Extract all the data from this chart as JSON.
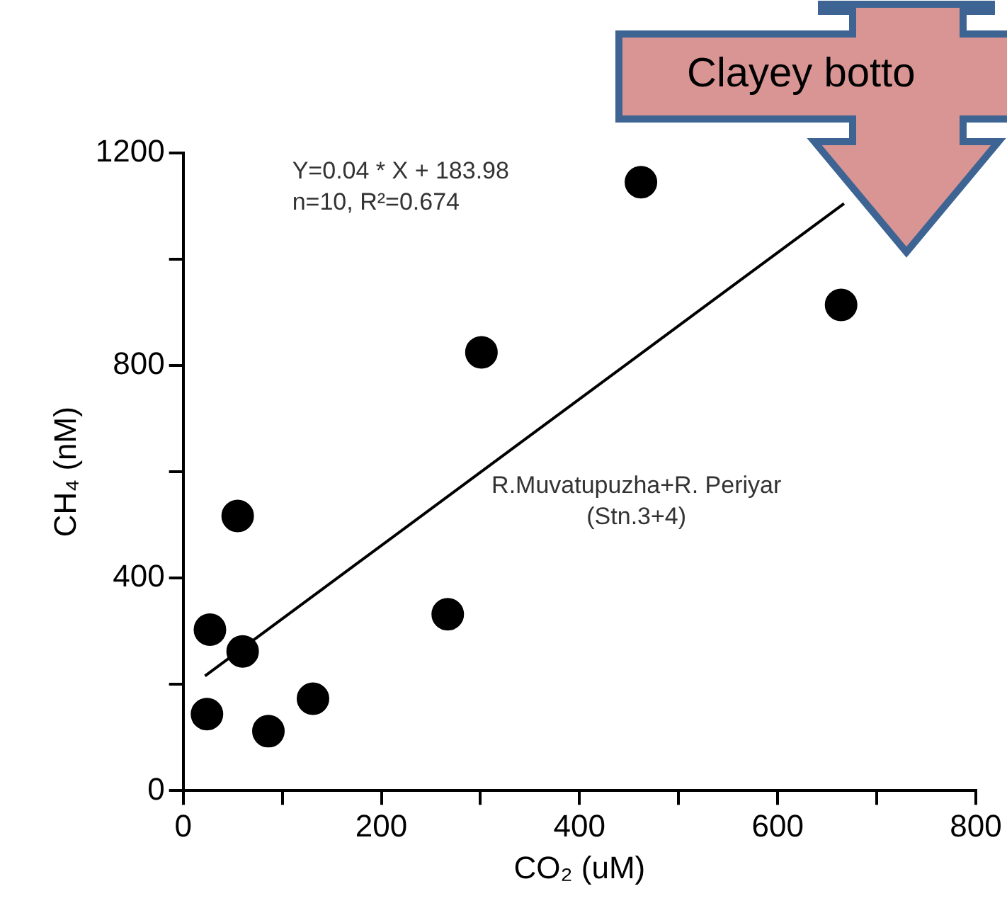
{
  "chart_data": {
    "type": "scatter",
    "xlabel": "CO₂ (uM)",
    "ylabel": "CH₄ (nM)",
    "xlim": [
      0,
      800
    ],
    "xticks": [
      0,
      {
        "value": 100,
        "label": null
      },
      200,
      {
        "value": 300,
        "label": null
      },
      400,
      {
        "value": 500,
        "label": null
      },
      600,
      {
        "value": 700,
        "label": null
      },
      800
    ],
    "ylim": [
      0,
      1200
    ],
    "yticks": [
      0,
      {
        "value": 200,
        "label": null
      },
      400,
      {
        "value": 600,
        "label": null
      },
      800,
      {
        "value": 1000,
        "label": null
      },
      1200
    ],
    "grid": false,
    "legend": false,
    "marker": "circle",
    "series": [
      {
        "type": "scatter",
        "color": "#000000",
        "x": [
          24,
          27,
          55,
          60,
          86,
          131,
          267,
          301,
          462,
          664
        ],
        "values": [
          144,
          303,
          517,
          262,
          112,
          173,
          332,
          825,
          1145,
          914
        ]
      },
      {
        "type": "line",
        "color": "#000000",
        "marker": "none",
        "x": [
          22,
          667
        ],
        "values": [
          216,
          1105
        ]
      }
    ],
    "annotations": [
      "Y=0.04 * X + 183.98",
      "n=10, R²=0.674",
      "R.Muvatupuzha+R. Periyar",
      "(Stn.3+4)",
      "Clayey botto"
    ]
  }
}
